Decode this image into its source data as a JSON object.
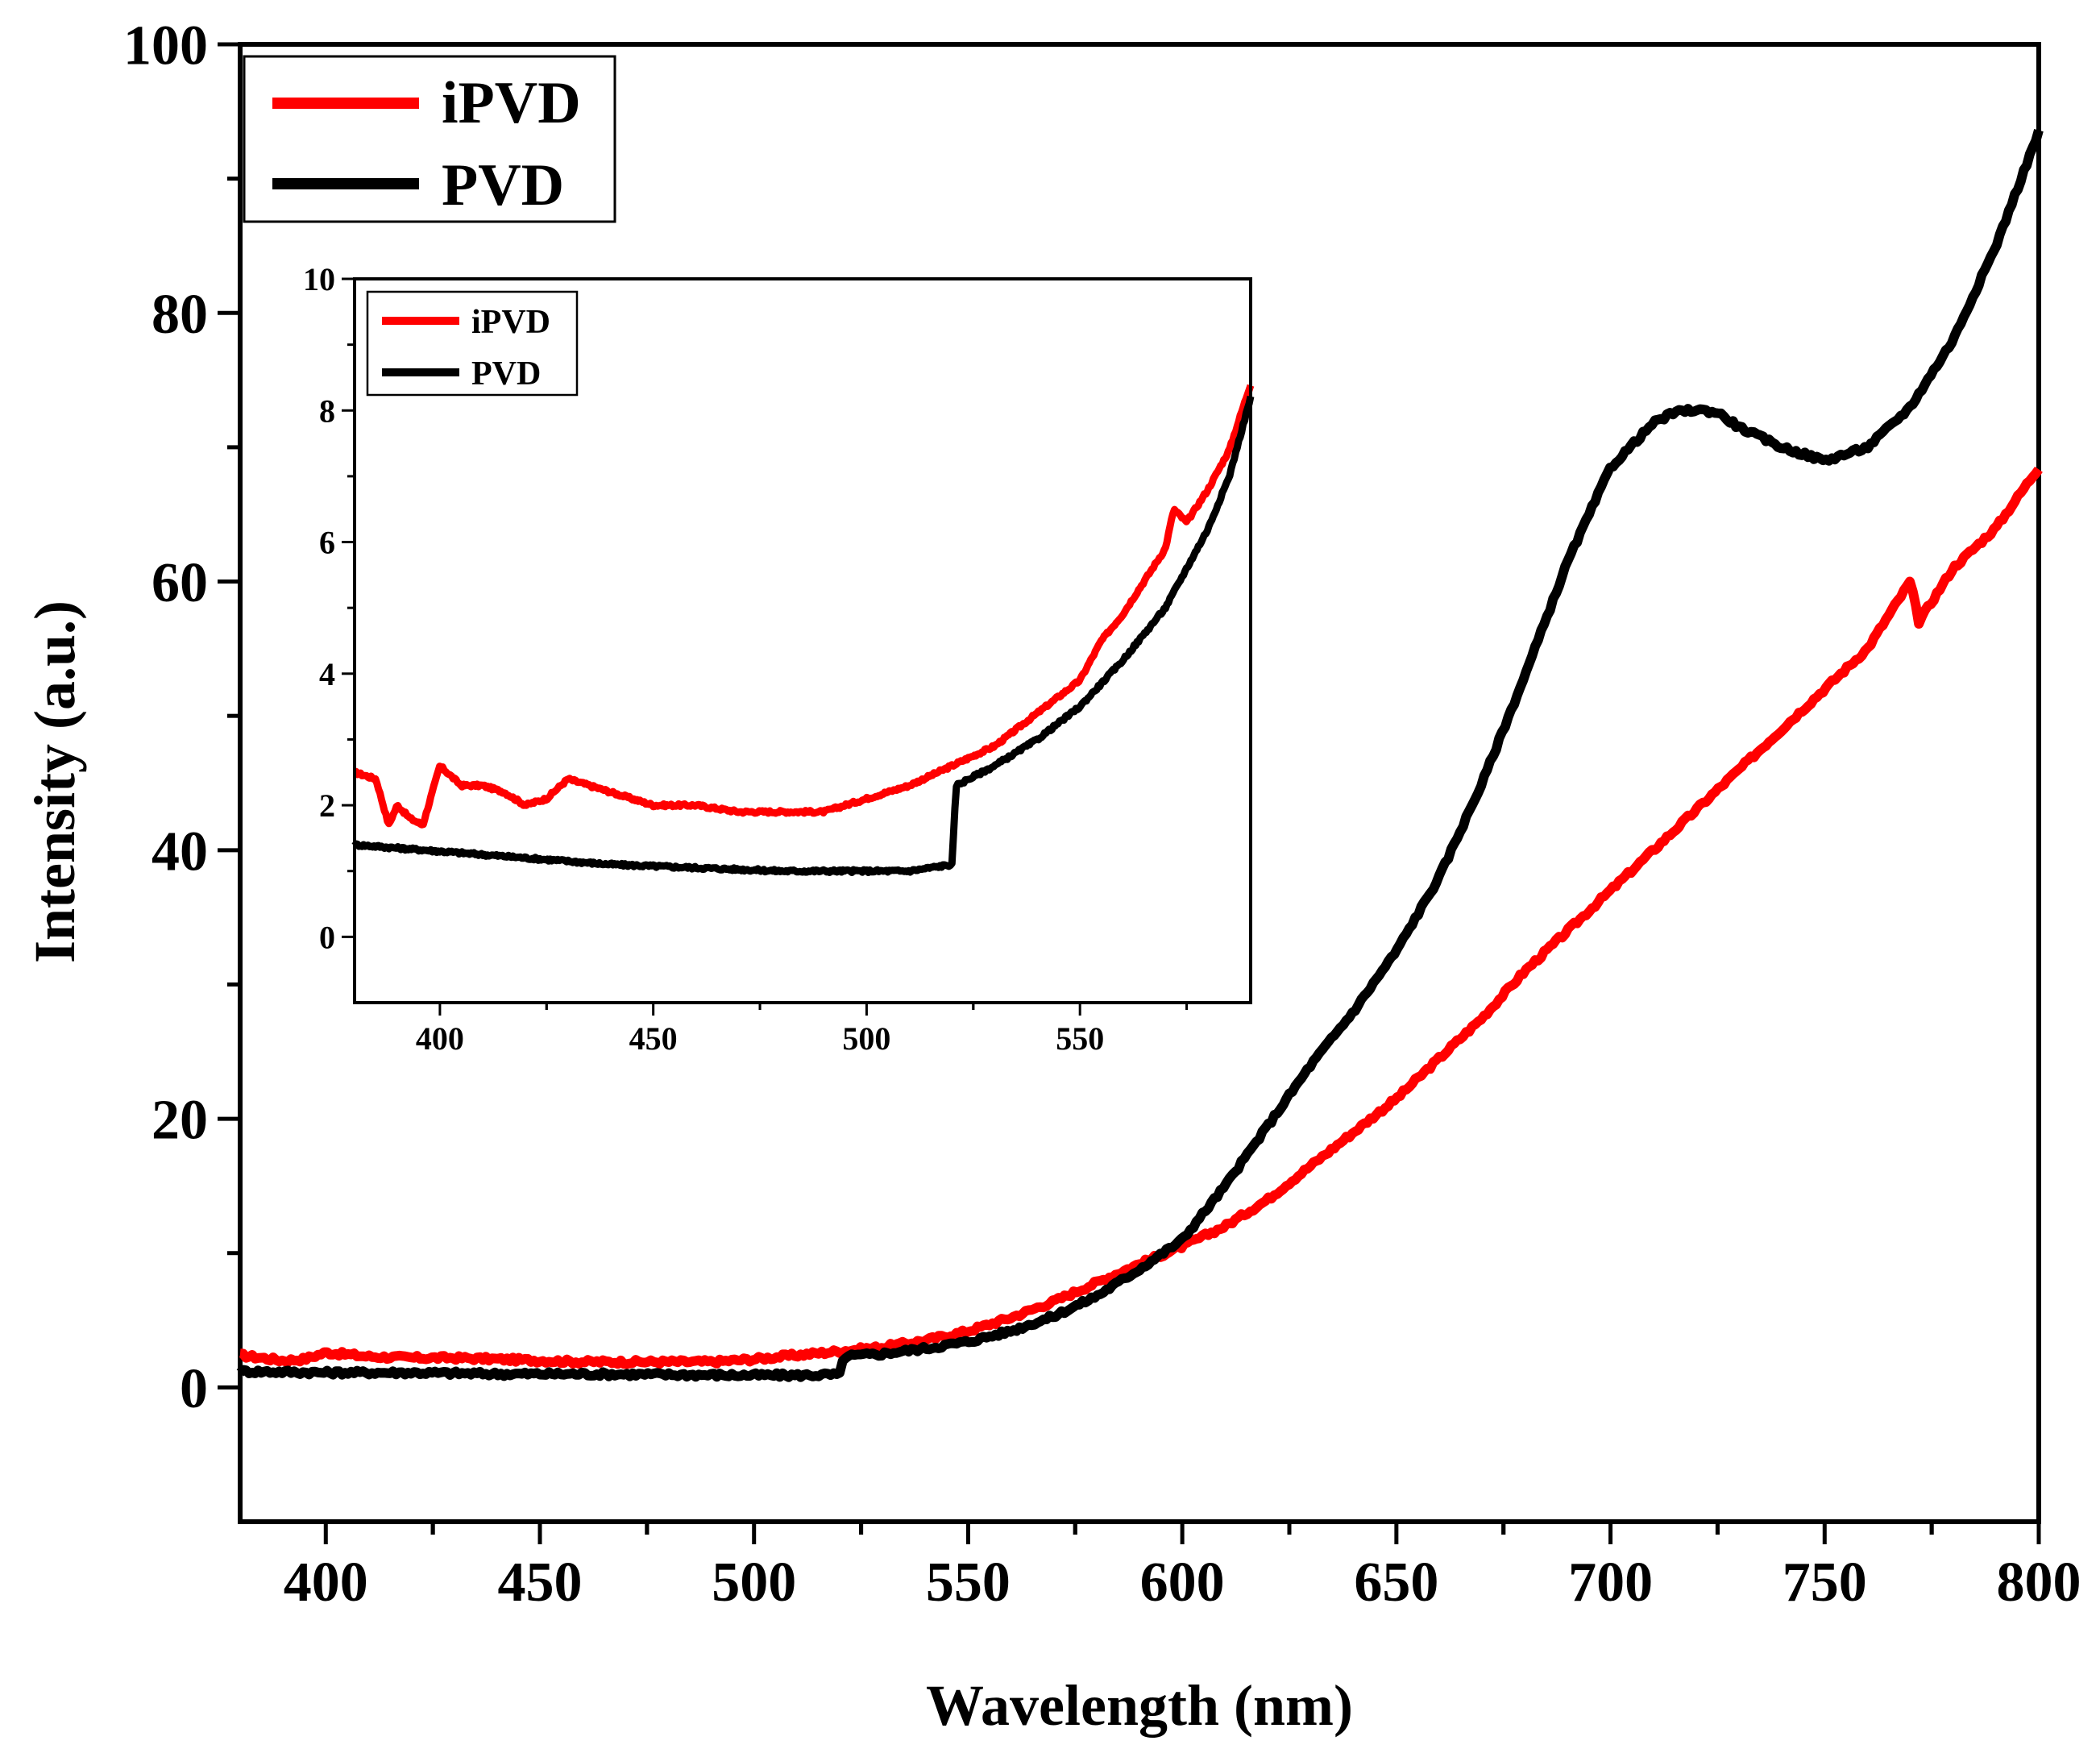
{
  "chart_data": [
    {
      "id": "main",
      "type": "line",
      "xlabel": "Wavelength (nm)",
      "ylabel": "Intensity (a.u.)",
      "xlim": [
        380,
        800
      ],
      "ylim": [
        -10,
        100
      ],
      "xticks": [
        400,
        450,
        500,
        550,
        600,
        650,
        700,
        750,
        800
      ],
      "yticks": [
        0,
        20,
        40,
        60,
        80,
        100
      ],
      "legend_position": "top-left",
      "series": [
        {
          "name": "iPVD",
          "color": "#ff0000",
          "x": [
            380,
            390,
            395,
            400,
            410,
            420,
            430,
            440,
            450,
            460,
            470,
            480,
            490,
            500,
            510,
            520,
            530,
            540,
            550,
            560,
            570,
            580,
            590,
            600,
            610,
            620,
            630,
            640,
            650,
            660,
            670,
            680,
            690,
            700,
            710,
            720,
            730,
            740,
            750,
            760,
            770,
            772,
            780,
            790,
            800
          ],
          "y": [
            2.4,
            2.0,
            2.1,
            2.6,
            2.3,
            2.2,
            2.2,
            2.1,
            2.0,
            1.9,
            1.9,
            1.9,
            1.9,
            2.1,
            2.4,
            2.7,
            3.0,
            3.5,
            4.2,
            5.2,
            6.4,
            7.8,
            9.2,
            10.5,
            12.0,
            14.0,
            16.5,
            19.0,
            21.5,
            24.5,
            27.5,
            31.0,
            34.0,
            37.0,
            40.0,
            43.0,
            46.0,
            49.0,
            52.0,
            55.0,
            60.0,
            57.0,
            61.0,
            64.0,
            68.5
          ]
        },
        {
          "name": "PVD",
          "color": "#000000",
          "x": [
            380,
            400,
            420,
            440,
            460,
            480,
            500,
            510,
            520,
            521,
            530,
            540,
            550,
            560,
            570,
            580,
            590,
            600,
            610,
            620,
            630,
            640,
            650,
            660,
            670,
            680,
            690,
            700,
            710,
            715,
            720,
            725,
            730,
            740,
            750,
            760,
            770,
            780,
            790,
            800
          ],
          "y": [
            1.2,
            1.1,
            1.1,
            1.0,
            1.0,
            0.95,
            0.9,
            0.9,
            0.95,
            2.3,
            2.5,
            2.9,
            3.4,
            4.2,
            5.3,
            6.8,
            8.8,
            11.0,
            15.0,
            19.5,
            24.0,
            28.0,
            32.5,
            38.0,
            45.0,
            53.0,
            61.5,
            68.5,
            71.8,
            72.6,
            72.8,
            72.6,
            71.5,
            70.0,
            69.0,
            70.0,
            73.0,
            78.0,
            85.0,
            93.5
          ]
        }
      ]
    },
    {
      "id": "inset",
      "type": "line",
      "xlim": [
        380,
        590
      ],
      "ylim": [
        -1,
        10
      ],
      "xticks": [
        400,
        450,
        500,
        550
      ],
      "yticks": [
        0,
        2,
        4,
        6,
        8,
        10
      ],
      "legend_position": "top-left",
      "series": [
        {
          "name": "iPVD",
          "color": "#ff0000",
          "x": [
            380,
            385,
            388,
            390,
            393,
            396,
            400,
            405,
            410,
            415,
            420,
            425,
            430,
            440,
            450,
            460,
            470,
            480,
            490,
            500,
            510,
            520,
            530,
            540,
            550,
            555,
            560,
            565,
            570,
            572,
            575,
            580,
            585,
            590
          ],
          "y": [
            2.5,
            2.4,
            1.7,
            2.0,
            1.8,
            1.7,
            2.6,
            2.3,
            2.3,
            2.2,
            2.0,
            2.1,
            2.4,
            2.2,
            2.0,
            2.0,
            1.9,
            1.9,
            1.9,
            2.1,
            2.3,
            2.6,
            2.9,
            3.4,
            3.9,
            4.5,
            4.9,
            5.4,
            5.9,
            6.5,
            6.3,
            6.8,
            7.4,
            8.4
          ]
        },
        {
          "name": "PVD",
          "color": "#000000",
          "x": [
            380,
            400,
            420,
            440,
            460,
            480,
            500,
            510,
            520,
            521,
            530,
            540,
            550,
            560,
            570,
            580,
            585,
            590
          ],
          "y": [
            1.4,
            1.3,
            1.2,
            1.1,
            1.05,
            1.0,
            1.0,
            1.0,
            1.1,
            2.3,
            2.6,
            3.0,
            3.5,
            4.2,
            5.0,
            6.2,
            7.0,
            8.2
          ]
        }
      ]
    }
  ]
}
